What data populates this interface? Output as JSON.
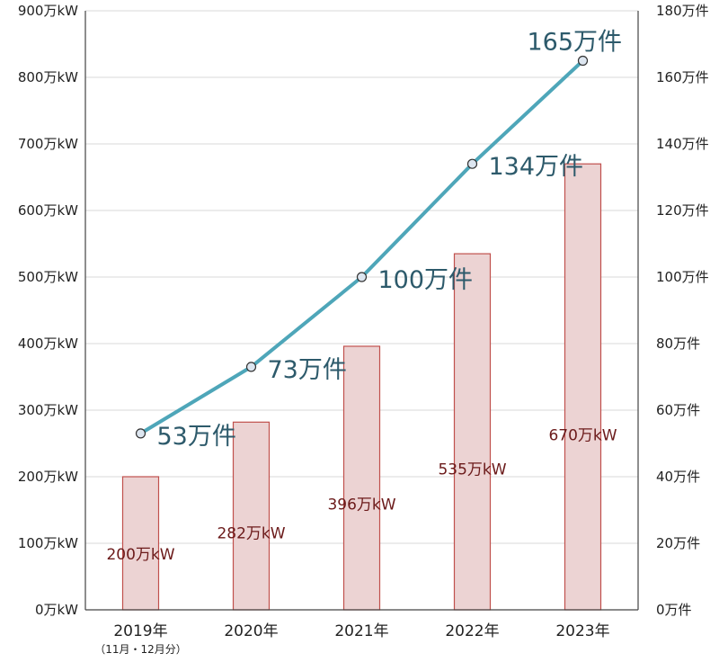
{
  "chart_data": {
    "type": "bar+line",
    "title": "",
    "categories": [
      "2019年",
      "2020年",
      "2021年",
      "2022年",
      "2023年"
    ],
    "category_notes": [
      "（11月・12月分）",
      "",
      "",
      "",
      ""
    ],
    "bar_series": {
      "axis": "left",
      "values": [
        200,
        282,
        396,
        535,
        670
      ],
      "labels": [
        "200万kW",
        "282万kW",
        "396万kW",
        "535万kW",
        "670万kW"
      ],
      "fill": "#ecd3d3",
      "stroke": "#c0504d"
    },
    "line_series": {
      "axis": "right",
      "values": [
        53,
        73,
        100,
        134,
        165
      ],
      "labels": [
        "53万件",
        "73万件",
        "100万件",
        "134万件",
        "165万件"
      ],
      "color": "#4ea6b9",
      "marker_fill": "#dde6f0",
      "marker_stroke": "#333333"
    },
    "left_axis": {
      "ylim": [
        0,
        900
      ],
      "ticks": [
        0,
        100,
        200,
        300,
        400,
        500,
        600,
        700,
        800,
        900
      ],
      "tick_labels": [
        "0万kW",
        "100万kW",
        "200万kW",
        "300万kW",
        "400万kW",
        "500万kW",
        "600万kW",
        "700万kW",
        "800万kW",
        "900万kW"
      ]
    },
    "right_axis": {
      "ylim": [
        0,
        180
      ],
      "ticks": [
        0,
        20,
        40,
        60,
        80,
        100,
        120,
        140,
        160,
        180
      ],
      "tick_labels": [
        "0万件",
        "20万件",
        "40万件",
        "60万件",
        "80万件",
        "100万件",
        "120万件",
        "140万件",
        "160万件",
        "180万件"
      ]
    },
    "grid": true,
    "legend": "none"
  }
}
